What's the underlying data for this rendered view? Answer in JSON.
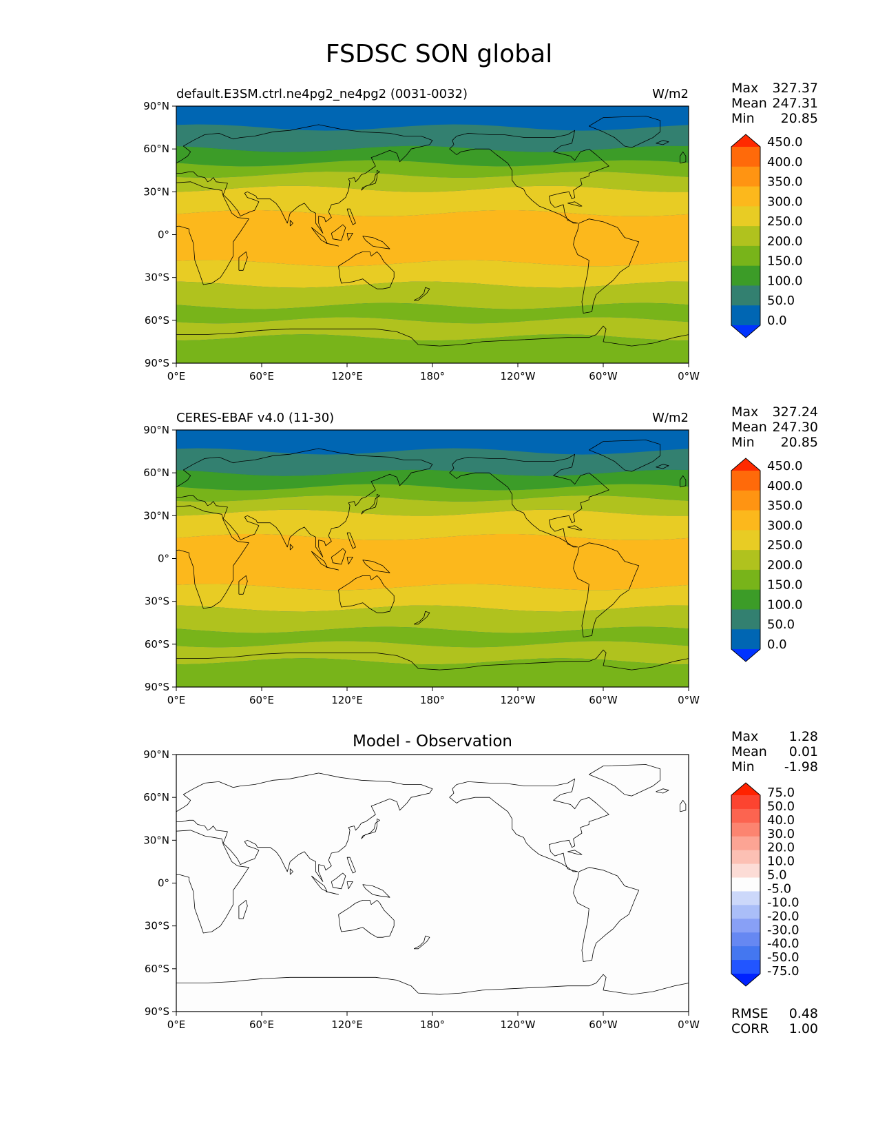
{
  "figure": {
    "title": "FSDSC SON global"
  },
  "colors": {
    "abs_levels": [
      "#0033ff",
      "#0066b3",
      "#338070",
      "#3c9c28",
      "#78b41a",
      "#b0c21e",
      "#e8cc24",
      "#fcb81c",
      "#ff9412",
      "#ff6a0a",
      "#ff2a00"
    ],
    "diff_levels": [
      "#0022ff",
      "#2255ff",
      "#4477f0",
      "#6688f2",
      "#88a0f6",
      "#aabef8",
      "#ccd8fa",
      "#fdfdfd",
      "#fcdcd6",
      "#fcc0b4",
      "#fca494",
      "#fc8470",
      "#fc6450",
      "#fc4430",
      "#ff2200"
    ],
    "coastline": "#000000"
  },
  "map": {
    "lat_ticks": [
      "90°N",
      "60°N",
      "30°N",
      "0°",
      "30°S",
      "60°S",
      "90°S"
    ],
    "lon_ticks": [
      "0°E",
      "60°E",
      "120°E",
      "180°",
      "120°W",
      "60°W",
      "0°W"
    ]
  },
  "panels": [
    {
      "title_left": "default.E3SM.ctrl.ne4pg2_ne4pg2 (0031-0032)",
      "title_center": "",
      "title_right": "W/m2",
      "stats": [
        [
          "Max",
          "327.37"
        ],
        [
          "Mean",
          "247.31"
        ],
        [
          "Min",
          "20.85"
        ]
      ],
      "colorbar_labels": [
        "0.0",
        "50.0",
        "100.0",
        "150.0",
        "200.0",
        "250.0",
        "300.0",
        "350.0",
        "400.0",
        "450.0"
      ],
      "extra_stats": []
    },
    {
      "title_left": "CERES-EBAF v4.0 (11-30)",
      "title_center": "",
      "title_right": "W/m2",
      "stats": [
        [
          "Max",
          "327.24"
        ],
        [
          "Mean",
          "247.30"
        ],
        [
          "Min",
          "20.85"
        ]
      ],
      "colorbar_labels": [
        "0.0",
        "50.0",
        "100.0",
        "150.0",
        "200.0",
        "250.0",
        "300.0",
        "350.0",
        "400.0",
        "450.0"
      ],
      "extra_stats": []
    },
    {
      "title_left": "",
      "title_center": "Model - Observation",
      "title_right": "",
      "stats": [
        [
          "Max",
          "1.28"
        ],
        [
          "Mean",
          "0.01"
        ],
        [
          "Min",
          "-1.98"
        ]
      ],
      "colorbar_labels": [
        "-75.0",
        "-50.0",
        "-40.0",
        "-30.0",
        "-20.0",
        "-10.0",
        "-5.0",
        "5.0",
        "10.0",
        "20.0",
        "30.0",
        "40.0",
        "50.0",
        "75.0"
      ],
      "extra_stats": [
        [
          "RMSE",
          "0.48"
        ],
        [
          "CORR",
          "1.00"
        ]
      ]
    }
  ],
  "chart_data": [
    {
      "type": "heatmap",
      "title": "default.E3SM.ctrl.ne4pg2_ne4pg2 (0031-0032)",
      "units": "W/m2",
      "zonal_band_lat_edges": [
        90,
        75,
        60,
        50,
        42,
        32,
        15,
        -20,
        -35,
        -50,
        -60,
        -72,
        -90
      ],
      "zonal_band_values": [
        25,
        75,
        125,
        175,
        225,
        275,
        325,
        275,
        225,
        175,
        225,
        175
      ],
      "levels": [
        0,
        50,
        100,
        150,
        200,
        250,
        300,
        350,
        400,
        450
      ],
      "max": 327.37,
      "mean": 247.31,
      "min": 20.85
    },
    {
      "type": "heatmap",
      "title": "CERES-EBAF v4.0 (11-30)",
      "units": "W/m2",
      "zonal_band_lat_edges": [
        90,
        75,
        60,
        50,
        42,
        32,
        15,
        -20,
        -35,
        -50,
        -60,
        -72,
        -90
      ],
      "zonal_band_values": [
        25,
        75,
        125,
        175,
        225,
        275,
        325,
        275,
        225,
        175,
        225,
        175
      ],
      "levels": [
        0,
        50,
        100,
        150,
        200,
        250,
        300,
        350,
        400,
        450
      ],
      "max": 327.24,
      "mean": 247.3,
      "min": 20.85
    },
    {
      "type": "heatmap",
      "title": "Model - Observation",
      "levels": [
        -75,
        -50,
        -40,
        -30,
        -20,
        -10,
        -5,
        5,
        10,
        20,
        30,
        40,
        50,
        75
      ],
      "field": "near-zero everywhere",
      "max": 1.28,
      "mean": 0.01,
      "min": -1.98,
      "rmse": 0.48,
      "corr": 1.0
    }
  ]
}
